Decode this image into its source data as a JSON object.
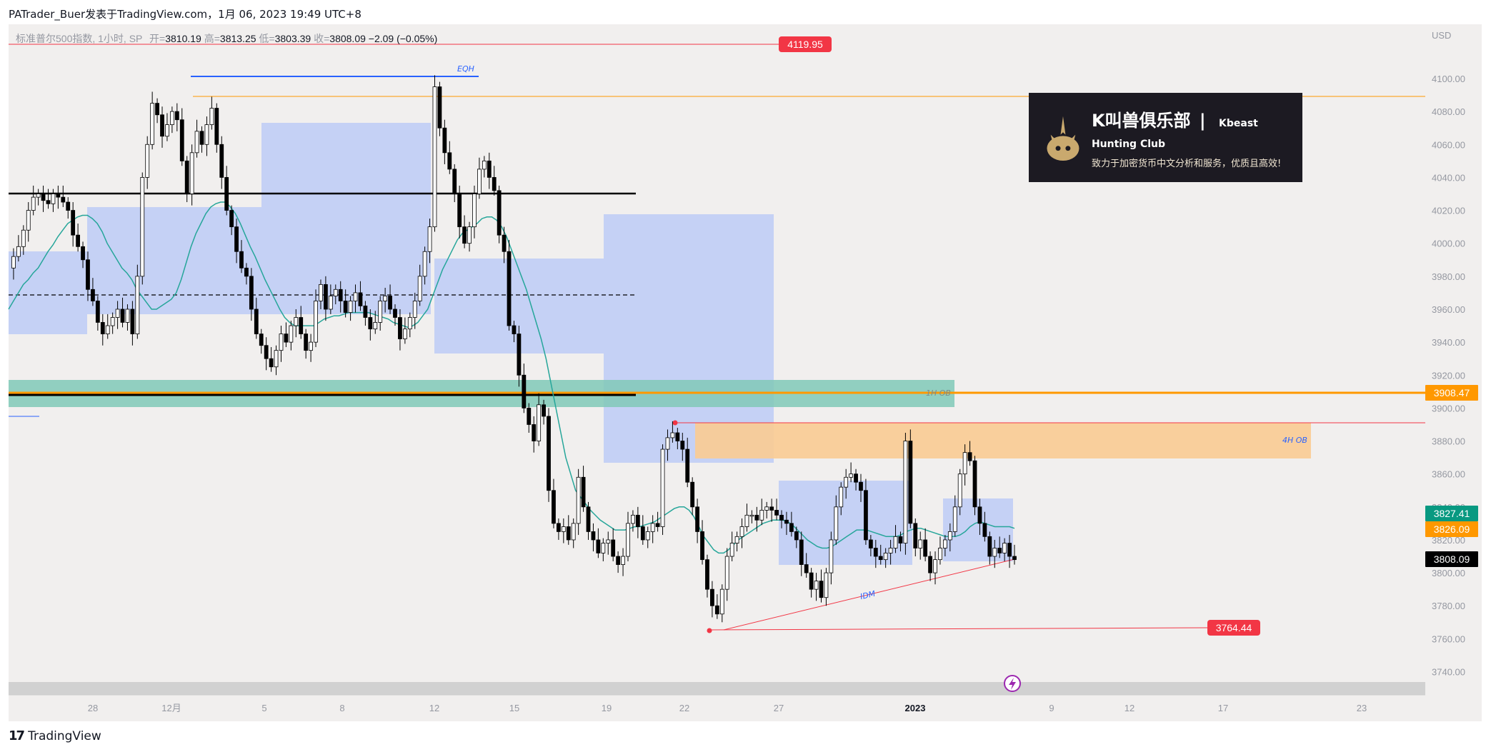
{
  "header": {
    "text": "PATrader_Buer发表于TradingView.com，1月 06, 2023 19:49 UTC+8"
  },
  "legend": {
    "symbol": "标准普尔500指数, 1小时, SP",
    "open_label": "开=",
    "open": "3810.19",
    "high_label": "高=",
    "high": "3813.25",
    "low_label": "低=",
    "low": "3803.39",
    "close_label": "收=",
    "close": "3808.09",
    "change": "−2.09 (−0.05%)"
  },
  "price_axis": {
    "currency": "USD",
    "ticks": [
      "4100.00",
      "4080.00",
      "4060.00",
      "4040.00",
      "4020.00",
      "4000.00",
      "3980.00",
      "3960.00",
      "3940.00",
      "3920.00",
      "3900.00",
      "3880.00",
      "3860.00",
      "3840.00",
      "3820.00",
      "3800.00",
      "3780.00",
      "3760.00",
      "3740.00"
    ]
  },
  "time_axis": {
    "ticks": [
      "28",
      "12月",
      "5",
      "8",
      "12",
      "15",
      "19",
      "22",
      "27",
      "2023",
      "9",
      "12",
      "17",
      "23"
    ]
  },
  "price_labels": [
    {
      "text": "4119.95",
      "color": "#f23645"
    },
    {
      "text": "3908.47",
      "color": "#ff9800"
    },
    {
      "text": "3827.41",
      "color": "#089981"
    },
    {
      "text": "3826.09",
      "color": "#ff9800"
    },
    {
      "text": "3808.09",
      "color": "#000000"
    },
    {
      "text": "3764.44",
      "color": "#f23645"
    }
  ],
  "annotations": {
    "eqh": "EQH",
    "ob_1h": "1H OB",
    "ob_4h": "4H OB",
    "idm": "IDM"
  },
  "brand": {
    "name": "K叫兽俱乐部",
    "separator": "|",
    "name_en": "Kbeast Hunting Club",
    "slogan": "致力于加密货币中文分析和服务，优质且高效!"
  },
  "footer": {
    "logo_icon": "tradingview-logo-icon",
    "text": "TradingView"
  },
  "colors": {
    "up_candle": "#ffffff",
    "down_candle": "#000000",
    "ema": "#26a69a",
    "blue_zone": "#c5d1f5",
    "teal_zone": "#80c9b7",
    "orange_zone": "#f9cb92",
    "orange_line": "#ff9800",
    "red_line": "#f23645",
    "blue_line": "#2962ff"
  },
  "chart_data": {
    "type": "candlestick",
    "symbol": "标准普尔500指数, 1小时, SP",
    "ylim": [
      3730,
      4115
    ],
    "last_close": 3808.09,
    "levels": {
      "high_marker": 4119.95,
      "eqh": 4101,
      "orange_top": 4090,
      "black_top": 4030,
      "mid_dashed": 3970,
      "orange_key": 3908.47,
      "red_4h": 3890,
      "low_marker": 3764.44
    },
    "price_series": [
      3985,
      3992,
      3998,
      4008,
      4020,
      4028,
      4030,
      4026,
      4024,
      4030,
      4028,
      4025,
      4020,
      4005,
      3998,
      3990,
      3972,
      3965,
      3952,
      3945,
      3950,
      3955,
      3960,
      3952,
      3960,
      3945,
      3980,
      4040,
      4060,
      4085,
      4078,
      4065,
      4072,
      4080,
      4075,
      4050,
      4030,
      4055,
      4068,
      4060,
      4072,
      4082,
      4060,
      4040,
      4020,
      4010,
      3995,
      3985,
      3980,
      3960,
      3945,
      3938,
      3930,
      3925,
      3935,
      3945,
      3940,
      3950,
      3955,
      3945,
      3935,
      3940,
      3965,
      3975,
      3960,
      3968,
      3972,
      3965,
      3958,
      3965,
      3970,
      3962,
      3955,
      3948,
      3952,
      3965,
      3968,
      3960,
      3955,
      3942,
      3948,
      3955,
      3965,
      3980,
      3995,
      4010,
      4095,
      4070,
      4055,
      4045,
      4030,
      4010,
      4000,
      4010,
      4030,
      4045,
      4050,
      4040,
      4032,
      4005,
      3995,
      3950,
      3945,
      3920,
      3900,
      3890,
      3880,
      3902,
      3895,
      3850,
      3830,
      3825,
      3828,
      3820,
      3830,
      3858,
      3840,
      3825,
      3820,
      3812,
      3818,
      3820,
      3810,
      3805,
      3810,
      3830,
      3835,
      3828,
      3820,
      3825,
      3830,
      3828,
      3875,
      3882,
      3885,
      3880,
      3875,
      3855,
      3840,
      3825,
      3808,
      3790,
      3780,
      3775,
      3790,
      3810,
      3818,
      3822,
      3828,
      3835,
      3835,
      3832,
      3838,
      3840,
      3838,
      3835,
      3832,
      3830,
      3825,
      3820,
      3805,
      3800,
      3790,
      3795,
      3785,
      3800,
      3820,
      3840,
      3852,
      3858,
      3860,
      3855,
      3850,
      3820,
      3815,
      3810,
      3808,
      3812,
      3815,
      3822,
      3818,
      3880,
      3830,
      3815,
      3820,
      3810,
      3800,
      3808,
      3815,
      3820,
      3825,
      3840,
      3860,
      3873,
      3868,
      3840,
      3830,
      3822,
      3810,
      3815,
      3812,
      3818,
      3810,
      3808
    ],
    "ema_series": [
      3960,
      3965,
      3970,
      3975,
      3978,
      3982,
      3985,
      3990,
      3995,
      3999,
      4004,
      4008,
      4012,
      4014,
      4016,
      4017,
      4017,
      4015,
      4012,
      4007,
      4000,
      3995,
      3990,
      3985,
      3982,
      3978,
      3972,
      3968,
      3964,
      3960,
      3960,
      3962,
      3964,
      3966,
      3970,
      3978,
      3988,
      3998,
      4006,
      4012,
      4018,
      4022,
      4024,
      4025,
      4025,
      4022,
      4018,
      4012,
      4005,
      3998,
      3992,
      3985,
      3978,
      3972,
      3966,
      3960,
      3955,
      3952,
      3950,
      3950,
      3950,
      3950,
      3950,
      3952,
      3954,
      3955,
      3956,
      3956,
      3957,
      3958,
      3958,
      3958,
      3958,
      3958,
      3957,
      3956,
      3955,
      3954,
      3952,
      3951,
      3950,
      3949,
      3950,
      3952,
      3956,
      3960,
      3968,
      3976,
      3984,
      3990,
      3996,
      4002,
      4006,
      4008,
      4010,
      4012,
      4015,
      4016,
      4016,
      4014,
      4010,
      4004,
      3996,
      3988,
      3980,
      3972,
      3962,
      3952,
      3942,
      3930,
      3915,
      3900,
      3885,
      3870,
      3860,
      3850,
      3846,
      3842,
      3838,
      3835,
      3832,
      3830,
      3828,
      3826,
      3826,
      3826,
      3827,
      3828,
      3828,
      3829,
      3830,
      3831,
      3833,
      3835,
      3837,
      3839,
      3840,
      3840,
      3838,
      3834,
      3828,
      3822,
      3818,
      3814,
      3812,
      3812,
      3814,
      3817,
      3820,
      3822,
      3824,
      3826,
      3828,
      3830,
      3831,
      3832,
      3832,
      3832,
      3831,
      3829,
      3826,
      3823,
      3820,
      3818,
      3816,
      3815,
      3815,
      3816,
      3818,
      3820,
      3822,
      3824,
      3826,
      3826,
      3826,
      3825,
      3824,
      3823,
      3822,
      3822,
      3822,
      3823,
      3825,
      3826,
      3827,
      3827,
      3826,
      3825,
      3824,
      3823,
      3822,
      3822,
      3822,
      3823,
      3825,
      3828,
      3830,
      3831,
      3830,
      3829,
      3828,
      3828,
      3828,
      3828,
      3827
    ]
  }
}
